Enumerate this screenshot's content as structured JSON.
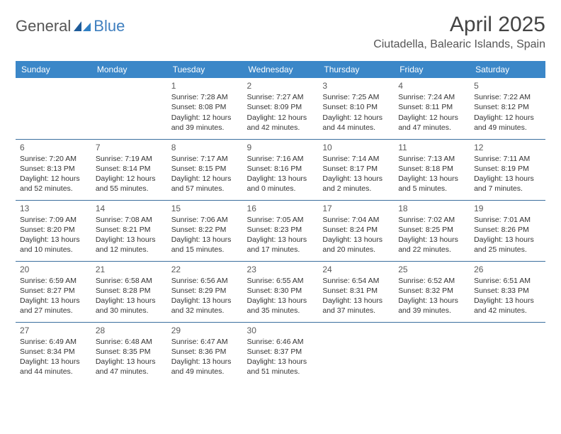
{
  "brand": {
    "general": "General",
    "blue": "Blue"
  },
  "title": "April 2025",
  "location": "Ciutadella, Balearic Islands, Spain",
  "colors": {
    "header_bg": "#3b87c8",
    "header_text": "#ffffff",
    "rule": "#3b6f9e",
    "body_text": "#333333",
    "brand_blue": "#3f7fbf"
  },
  "columns": [
    "Sunday",
    "Monday",
    "Tuesday",
    "Wednesday",
    "Thursday",
    "Friday",
    "Saturday"
  ],
  "first_weekday_index": 2,
  "days": [
    {
      "n": 1,
      "sunrise": "7:28 AM",
      "sunset": "8:08 PM",
      "daylight": "12 hours and 39 minutes."
    },
    {
      "n": 2,
      "sunrise": "7:27 AM",
      "sunset": "8:09 PM",
      "daylight": "12 hours and 42 minutes."
    },
    {
      "n": 3,
      "sunrise": "7:25 AM",
      "sunset": "8:10 PM",
      "daylight": "12 hours and 44 minutes."
    },
    {
      "n": 4,
      "sunrise": "7:24 AM",
      "sunset": "8:11 PM",
      "daylight": "12 hours and 47 minutes."
    },
    {
      "n": 5,
      "sunrise": "7:22 AM",
      "sunset": "8:12 PM",
      "daylight": "12 hours and 49 minutes."
    },
    {
      "n": 6,
      "sunrise": "7:20 AM",
      "sunset": "8:13 PM",
      "daylight": "12 hours and 52 minutes."
    },
    {
      "n": 7,
      "sunrise": "7:19 AM",
      "sunset": "8:14 PM",
      "daylight": "12 hours and 55 minutes."
    },
    {
      "n": 8,
      "sunrise": "7:17 AM",
      "sunset": "8:15 PM",
      "daylight": "12 hours and 57 minutes."
    },
    {
      "n": 9,
      "sunrise": "7:16 AM",
      "sunset": "8:16 PM",
      "daylight": "13 hours and 0 minutes."
    },
    {
      "n": 10,
      "sunrise": "7:14 AM",
      "sunset": "8:17 PM",
      "daylight": "13 hours and 2 minutes."
    },
    {
      "n": 11,
      "sunrise": "7:13 AM",
      "sunset": "8:18 PM",
      "daylight": "13 hours and 5 minutes."
    },
    {
      "n": 12,
      "sunrise": "7:11 AM",
      "sunset": "8:19 PM",
      "daylight": "13 hours and 7 minutes."
    },
    {
      "n": 13,
      "sunrise": "7:09 AM",
      "sunset": "8:20 PM",
      "daylight": "13 hours and 10 minutes."
    },
    {
      "n": 14,
      "sunrise": "7:08 AM",
      "sunset": "8:21 PM",
      "daylight": "13 hours and 12 minutes."
    },
    {
      "n": 15,
      "sunrise": "7:06 AM",
      "sunset": "8:22 PM",
      "daylight": "13 hours and 15 minutes."
    },
    {
      "n": 16,
      "sunrise": "7:05 AM",
      "sunset": "8:23 PM",
      "daylight": "13 hours and 17 minutes."
    },
    {
      "n": 17,
      "sunrise": "7:04 AM",
      "sunset": "8:24 PM",
      "daylight": "13 hours and 20 minutes."
    },
    {
      "n": 18,
      "sunrise": "7:02 AM",
      "sunset": "8:25 PM",
      "daylight": "13 hours and 22 minutes."
    },
    {
      "n": 19,
      "sunrise": "7:01 AM",
      "sunset": "8:26 PM",
      "daylight": "13 hours and 25 minutes."
    },
    {
      "n": 20,
      "sunrise": "6:59 AM",
      "sunset": "8:27 PM",
      "daylight": "13 hours and 27 minutes."
    },
    {
      "n": 21,
      "sunrise": "6:58 AM",
      "sunset": "8:28 PM",
      "daylight": "13 hours and 30 minutes."
    },
    {
      "n": 22,
      "sunrise": "6:56 AM",
      "sunset": "8:29 PM",
      "daylight": "13 hours and 32 minutes."
    },
    {
      "n": 23,
      "sunrise": "6:55 AM",
      "sunset": "8:30 PM",
      "daylight": "13 hours and 35 minutes."
    },
    {
      "n": 24,
      "sunrise": "6:54 AM",
      "sunset": "8:31 PM",
      "daylight": "13 hours and 37 minutes."
    },
    {
      "n": 25,
      "sunrise": "6:52 AM",
      "sunset": "8:32 PM",
      "daylight": "13 hours and 39 minutes."
    },
    {
      "n": 26,
      "sunrise": "6:51 AM",
      "sunset": "8:33 PM",
      "daylight": "13 hours and 42 minutes."
    },
    {
      "n": 27,
      "sunrise": "6:49 AM",
      "sunset": "8:34 PM",
      "daylight": "13 hours and 44 minutes."
    },
    {
      "n": 28,
      "sunrise": "6:48 AM",
      "sunset": "8:35 PM",
      "daylight": "13 hours and 47 minutes."
    },
    {
      "n": 29,
      "sunrise": "6:47 AM",
      "sunset": "8:36 PM",
      "daylight": "13 hours and 49 minutes."
    },
    {
      "n": 30,
      "sunrise": "6:46 AM",
      "sunset": "8:37 PM",
      "daylight": "13 hours and 51 minutes."
    }
  ],
  "labels": {
    "sunrise": "Sunrise: ",
    "sunset": "Sunset: ",
    "daylight": "Daylight: "
  }
}
